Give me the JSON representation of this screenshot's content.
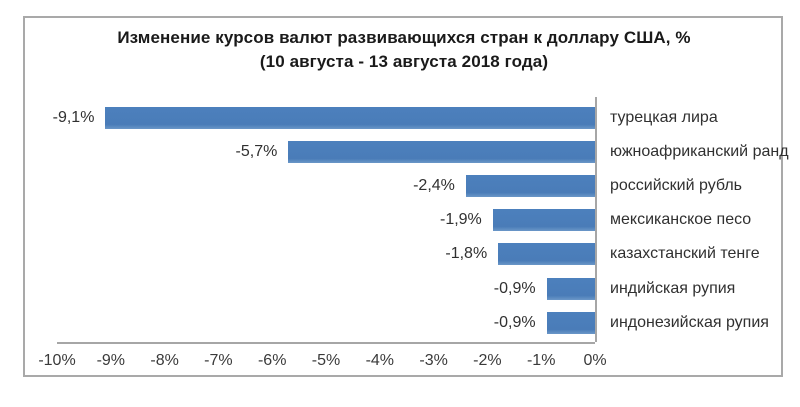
{
  "title": {
    "line1": "Изменение курсов валют развивающихся стран к доллару США, %",
    "line2": "(10 августа - 13 августа 2018 года)"
  },
  "chart_data": {
    "type": "bar",
    "orientation": "horizontal",
    "title": "Изменение курсов валют развивающихся стран к доллару США, % (10 августа - 13 августа 2018 года)",
    "categories": [
      "турецкая лира",
      "южноафриканский ранд",
      "российский рубль",
      "мексиканское песо",
      "казахстанский тенге",
      "индийская рупия",
      "индонезийская рупия"
    ],
    "values": [
      -9.1,
      -5.7,
      -2.4,
      -1.9,
      -1.8,
      -0.9,
      -0.9
    ],
    "value_labels": [
      "-9,1%",
      "-5,7%",
      "-2,4%",
      "-1,9%",
      "-1,8%",
      "-0,9%",
      "-0,9%"
    ],
    "x_ticks": [
      "-10%",
      "-9%",
      "-8%",
      "-7%",
      "-6%",
      "-5%",
      "-4%",
      "-3%",
      "-2%",
      "-1%",
      "0%"
    ],
    "xlim": [
      -10,
      0
    ],
    "grid": false,
    "legend": false,
    "bar_color": "#4a7ebb",
    "axis_color": "#a6a6a6",
    "frame_color": "#a9a9a9",
    "text_color": "#303030"
  }
}
